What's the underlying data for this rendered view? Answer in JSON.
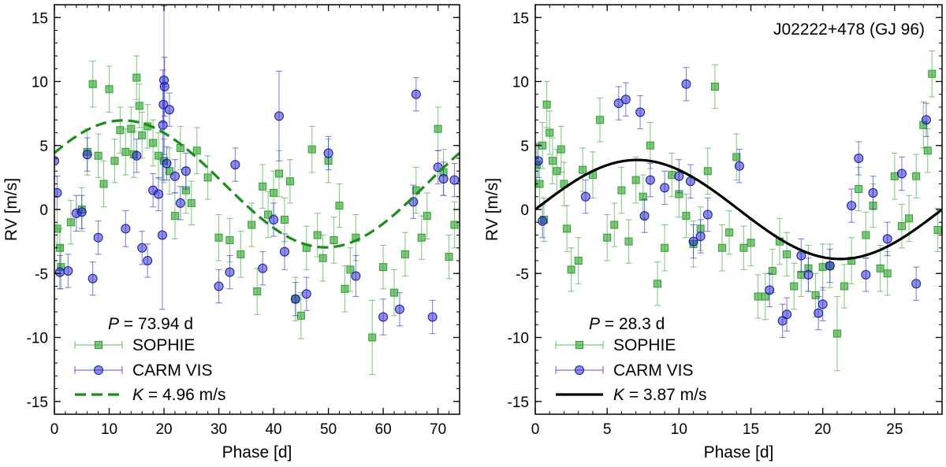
{
  "chart_data": [
    {
      "type": "scatter",
      "title": "",
      "xlabel": "Phase [d]",
      "ylabel": "RV [m/s]",
      "xlim": [
        0,
        73.94
      ],
      "ylim": [
        -16,
        16
      ],
      "xticks": [
        0,
        10,
        20,
        30,
        40,
        50,
        60,
        70
      ],
      "yticks": [
        -15,
        -10,
        -5,
        0,
        5,
        10,
        15
      ],
      "period_label": "P",
      "period_value": "= 73.94 d",
      "legend_position": "bottom-left",
      "colors": {
        "sophie": "#2ca02c",
        "carm": "#2020cc",
        "model": "#1a8c1a"
      },
      "model": {
        "type": "sinusoid",
        "K": 4.96,
        "peak_phase": 12.5,
        "offset": 2.0,
        "style": "dashed"
      },
      "legend": [
        {
          "label": "SOPHIE",
          "marker": "square"
        },
        {
          "label": "CARM VIS",
          "marker": "circle"
        },
        {
          "label_prefix": "K",
          "label": "= 4.96 m/s",
          "marker": "dashed-line"
        }
      ],
      "series": [
        {
          "name": "SOPHIE",
          "x": [
            0.5,
            1,
            1.2,
            3,
            5,
            6,
            7,
            8,
            9,
            10,
            11,
            12,
            13,
            14,
            14.5,
            15,
            15.5,
            16,
            17,
            18,
            19,
            20,
            21,
            22,
            23,
            24,
            25,
            26,
            28,
            30,
            32,
            34,
            36,
            37,
            38,
            39,
            40,
            41,
            42,
            43,
            44,
            45,
            46,
            47,
            48,
            49,
            50,
            51,
            52,
            53,
            54,
            55,
            58,
            60,
            62,
            64,
            66,
            67,
            68,
            70,
            71,
            72,
            73
          ],
          "y": [
            -1.5,
            -3,
            -4.5,
            -1,
            0,
            4.5,
            9.8,
            4.2,
            2,
            9.4,
            3.8,
            6.2,
            4.5,
            6.3,
            4.3,
            10.3,
            8.1,
            5.8,
            6.5,
            5.2,
            4.2,
            3.8,
            3,
            -0.5,
            4.8,
            1.5,
            0.5,
            4.6,
            2.5,
            -2.2,
            -2.4,
            -3.5,
            -1.2,
            -6.4,
            1.8,
            -0.4,
            1.3,
            2.8,
            -0.8,
            2.2,
            -7,
            -8.3,
            -3,
            4.7,
            -2,
            -3.8,
            3.8,
            -2.4,
            0.3,
            -6.2,
            -4.7,
            -2.2,
            -10,
            -4.5,
            -6.5,
            -3.5,
            1.5,
            -2.2,
            -0.5,
            6.3,
            2.9,
            -3.7,
            -1.2
          ],
          "err": [
            1.5,
            1.5,
            1.7,
            1.7,
            1.7,
            1.8,
            1.8,
            1.7,
            1.8,
            1.8,
            1.7,
            1.8,
            1.8,
            1.7,
            1.8,
            1.7,
            1.7,
            1.8,
            1.7,
            1.8,
            1.8,
            1.7,
            1.8,
            1.8,
            1.7,
            1.8,
            1.7,
            1.8,
            1.7,
            1.8,
            1.7,
            1.8,
            1.7,
            1.8,
            1.7,
            1.8,
            1.7,
            1.8,
            1.7,
            1.7,
            1.7,
            1.8,
            1.7,
            1.8,
            1.7,
            1.8,
            1.7,
            1.8,
            1.7,
            1.8,
            1.7,
            1.8,
            2.9,
            1.7,
            1.8,
            1.7,
            1.8,
            1.7,
            1.8,
            1.7,
            1.8,
            1.7,
            1.8
          ]
        },
        {
          "name": "CARM VIS",
          "x": [
            0,
            0.5,
            1,
            2.5,
            4,
            5,
            6,
            7,
            8,
            13,
            15,
            16,
            17,
            18,
            19,
            19.7,
            19.8,
            19.9,
            20,
            20.1,
            20.5,
            21,
            22,
            23,
            24,
            30,
            32,
            33,
            38,
            40,
            41,
            42,
            44,
            46,
            50,
            55,
            60,
            63,
            65.5,
            66,
            69,
            70,
            71,
            73
          ],
          "y": [
            3.8,
            1.3,
            -4.9,
            -4.8,
            -0.3,
            -0.2,
            4.3,
            -5.4,
            -2.2,
            -1.5,
            4.2,
            -3,
            -4,
            1.5,
            1.2,
            -2,
            6.6,
            8.2,
            10.1,
            9.6,
            3.6,
            7.8,
            2.6,
            0.5,
            3,
            -6,
            -4.9,
            3.5,
            -4.6,
            -0.8,
            7.3,
            -3.3,
            -7,
            -6.6,
            4.4,
            -5.2,
            -8.4,
            -7.8,
            0.6,
            9,
            -8.4,
            3.3,
            2.4,
            2.3
          ],
          "err": [
            1.2,
            1.3,
            1.3,
            1.3,
            1.4,
            1.3,
            1.3,
            1.3,
            1.3,
            1.4,
            1.3,
            1.3,
            1.3,
            1.3,
            1.3,
            5.8,
            4.3,
            1.4,
            5.8,
            2.3,
            1.3,
            1.3,
            1.3,
            1.3,
            1.4,
            1.3,
            1.3,
            1.3,
            1.3,
            1.3,
            3.5,
            1.4,
            1.3,
            1.3,
            1.3,
            1.6,
            1.4,
            1.3,
            1.3,
            1.3,
            1.3,
            1.3,
            1.3,
            1.3
          ]
        }
      ]
    },
    {
      "type": "scatter",
      "title": "J02222+478 (GJ 96)",
      "xlabel": "Phase [d]",
      "ylabel": "RV [m/s]",
      "xlim": [
        0,
        28.3
      ],
      "ylim": [
        -16,
        16
      ],
      "xticks": [
        0,
        5,
        10,
        15,
        20,
        25
      ],
      "yticks": [
        -15,
        -10,
        -5,
        0,
        5,
        10,
        15
      ],
      "period_label": "P",
      "period_value": "= 28.3 d",
      "legend_position": "bottom-left",
      "colors": {
        "sophie": "#2ca02c",
        "carm": "#2020cc",
        "model": "#000000"
      },
      "model": {
        "type": "sinusoid",
        "K": 3.87,
        "peak_phase": 7.075,
        "offset": 0.0,
        "style": "solid"
      },
      "legend": [
        {
          "label": "SOPHIE",
          "marker": "square"
        },
        {
          "label": "CARM VIS",
          "marker": "circle"
        },
        {
          "label_prefix": "K",
          "label": "= 3.87 m/s",
          "marker": "solid-line"
        }
      ],
      "series": [
        {
          "name": "SOPHIE",
          "x": [
            0.1,
            0.3,
            0.5,
            0.6,
            0.8,
            1,
            1.2,
            1.5,
            1.8,
            2,
            2.2,
            2.5,
            3,
            3.3,
            4,
            4.5,
            5,
            5.5,
            6,
            6.5,
            7,
            7.5,
            8,
            8.5,
            9,
            9.5,
            10,
            10.5,
            11,
            11.5,
            12,
            12.5,
            13,
            13.5,
            14,
            14.5,
            15,
            15.5,
            16,
            16.5,
            17,
            17.5,
            18,
            18.5,
            19,
            19.5,
            20,
            20.5,
            21,
            21.5,
            22,
            22.5,
            23,
            23.5,
            24,
            24.5,
            25,
            25.5,
            26,
            26.5,
            27,
            27.3,
            27.6,
            28
          ],
          "y": [
            3.5,
            2,
            5,
            -0.8,
            8.2,
            6,
            3.8,
            3,
            4.7,
            2,
            -1.5,
            -4.7,
            -4,
            3.1,
            2.7,
            7,
            -2.2,
            -1.2,
            1.5,
            -2.5,
            2.3,
            1,
            5,
            -5.8,
            -3,
            2.7,
            1.2,
            -0.5,
            -2.7,
            -1.5,
            3,
            9.6,
            -3,
            -1.8,
            4.1,
            -3,
            -2.6,
            -6.8,
            -6.8,
            -4.8,
            -2.5,
            -3.5,
            -6,
            -5.1,
            -4.6,
            -6.7,
            -4.5,
            -4.4,
            -9.7,
            -6,
            -4,
            1.6,
            -2,
            0.3,
            -4.6,
            -5,
            2.6,
            -1.3,
            -0.7,
            2.6,
            6.6,
            4.6,
            10.6,
            -1.6
          ],
          "err": [
            1.7,
            1.7,
            1.8,
            1.7,
            1.8,
            1.7,
            1.8,
            1.7,
            1.8,
            1.7,
            1.8,
            1.7,
            1.8,
            1.7,
            1.8,
            1.7,
            1.8,
            1.7,
            1.8,
            1.7,
            1.8,
            1.7,
            1.8,
            1.7,
            1.8,
            1.7,
            1.8,
            1.7,
            1.8,
            1.7,
            1.8,
            1.7,
            1.8,
            1.7,
            1.8,
            1.7,
            1.8,
            1.7,
            1.8,
            1.7,
            1.8,
            1.7,
            1.8,
            1.7,
            1.8,
            1.7,
            1.8,
            1.7,
            2.9,
            1.7,
            1.8,
            1.7,
            1.8,
            1.7,
            1.8,
            1.7,
            1.8,
            1.7,
            1.8,
            1.7,
            1.8,
            1.7,
            1.8,
            1.7
          ]
        },
        {
          "name": "CARM VIS",
          "x": [
            0.2,
            0.5,
            3.5,
            5.8,
            6.3,
            7.3,
            7.6,
            8,
            9,
            10,
            10.5,
            10.8,
            11,
            11.5,
            12,
            14.2,
            16.3,
            17.2,
            17.5,
            18.5,
            19,
            19.7,
            20,
            20.5,
            22,
            22.5,
            23,
            23.5,
            24.5,
            25.5,
            26.5,
            27.2
          ],
          "y": [
            3.8,
            -0.9,
            1,
            8.3,
            8.6,
            7.6,
            -0.5,
            2.3,
            1.7,
            2.6,
            9.8,
            2.2,
            -2.5,
            -2.1,
            -0.4,
            3.4,
            -6.3,
            -8.7,
            -8.2,
            -3.6,
            -5.1,
            -8.1,
            -7.4,
            -4.4,
            0.3,
            4,
            -5.1,
            1.3,
            -2.3,
            2.8,
            -5.8,
            7
          ]
        }
      ]
    }
  ]
}
